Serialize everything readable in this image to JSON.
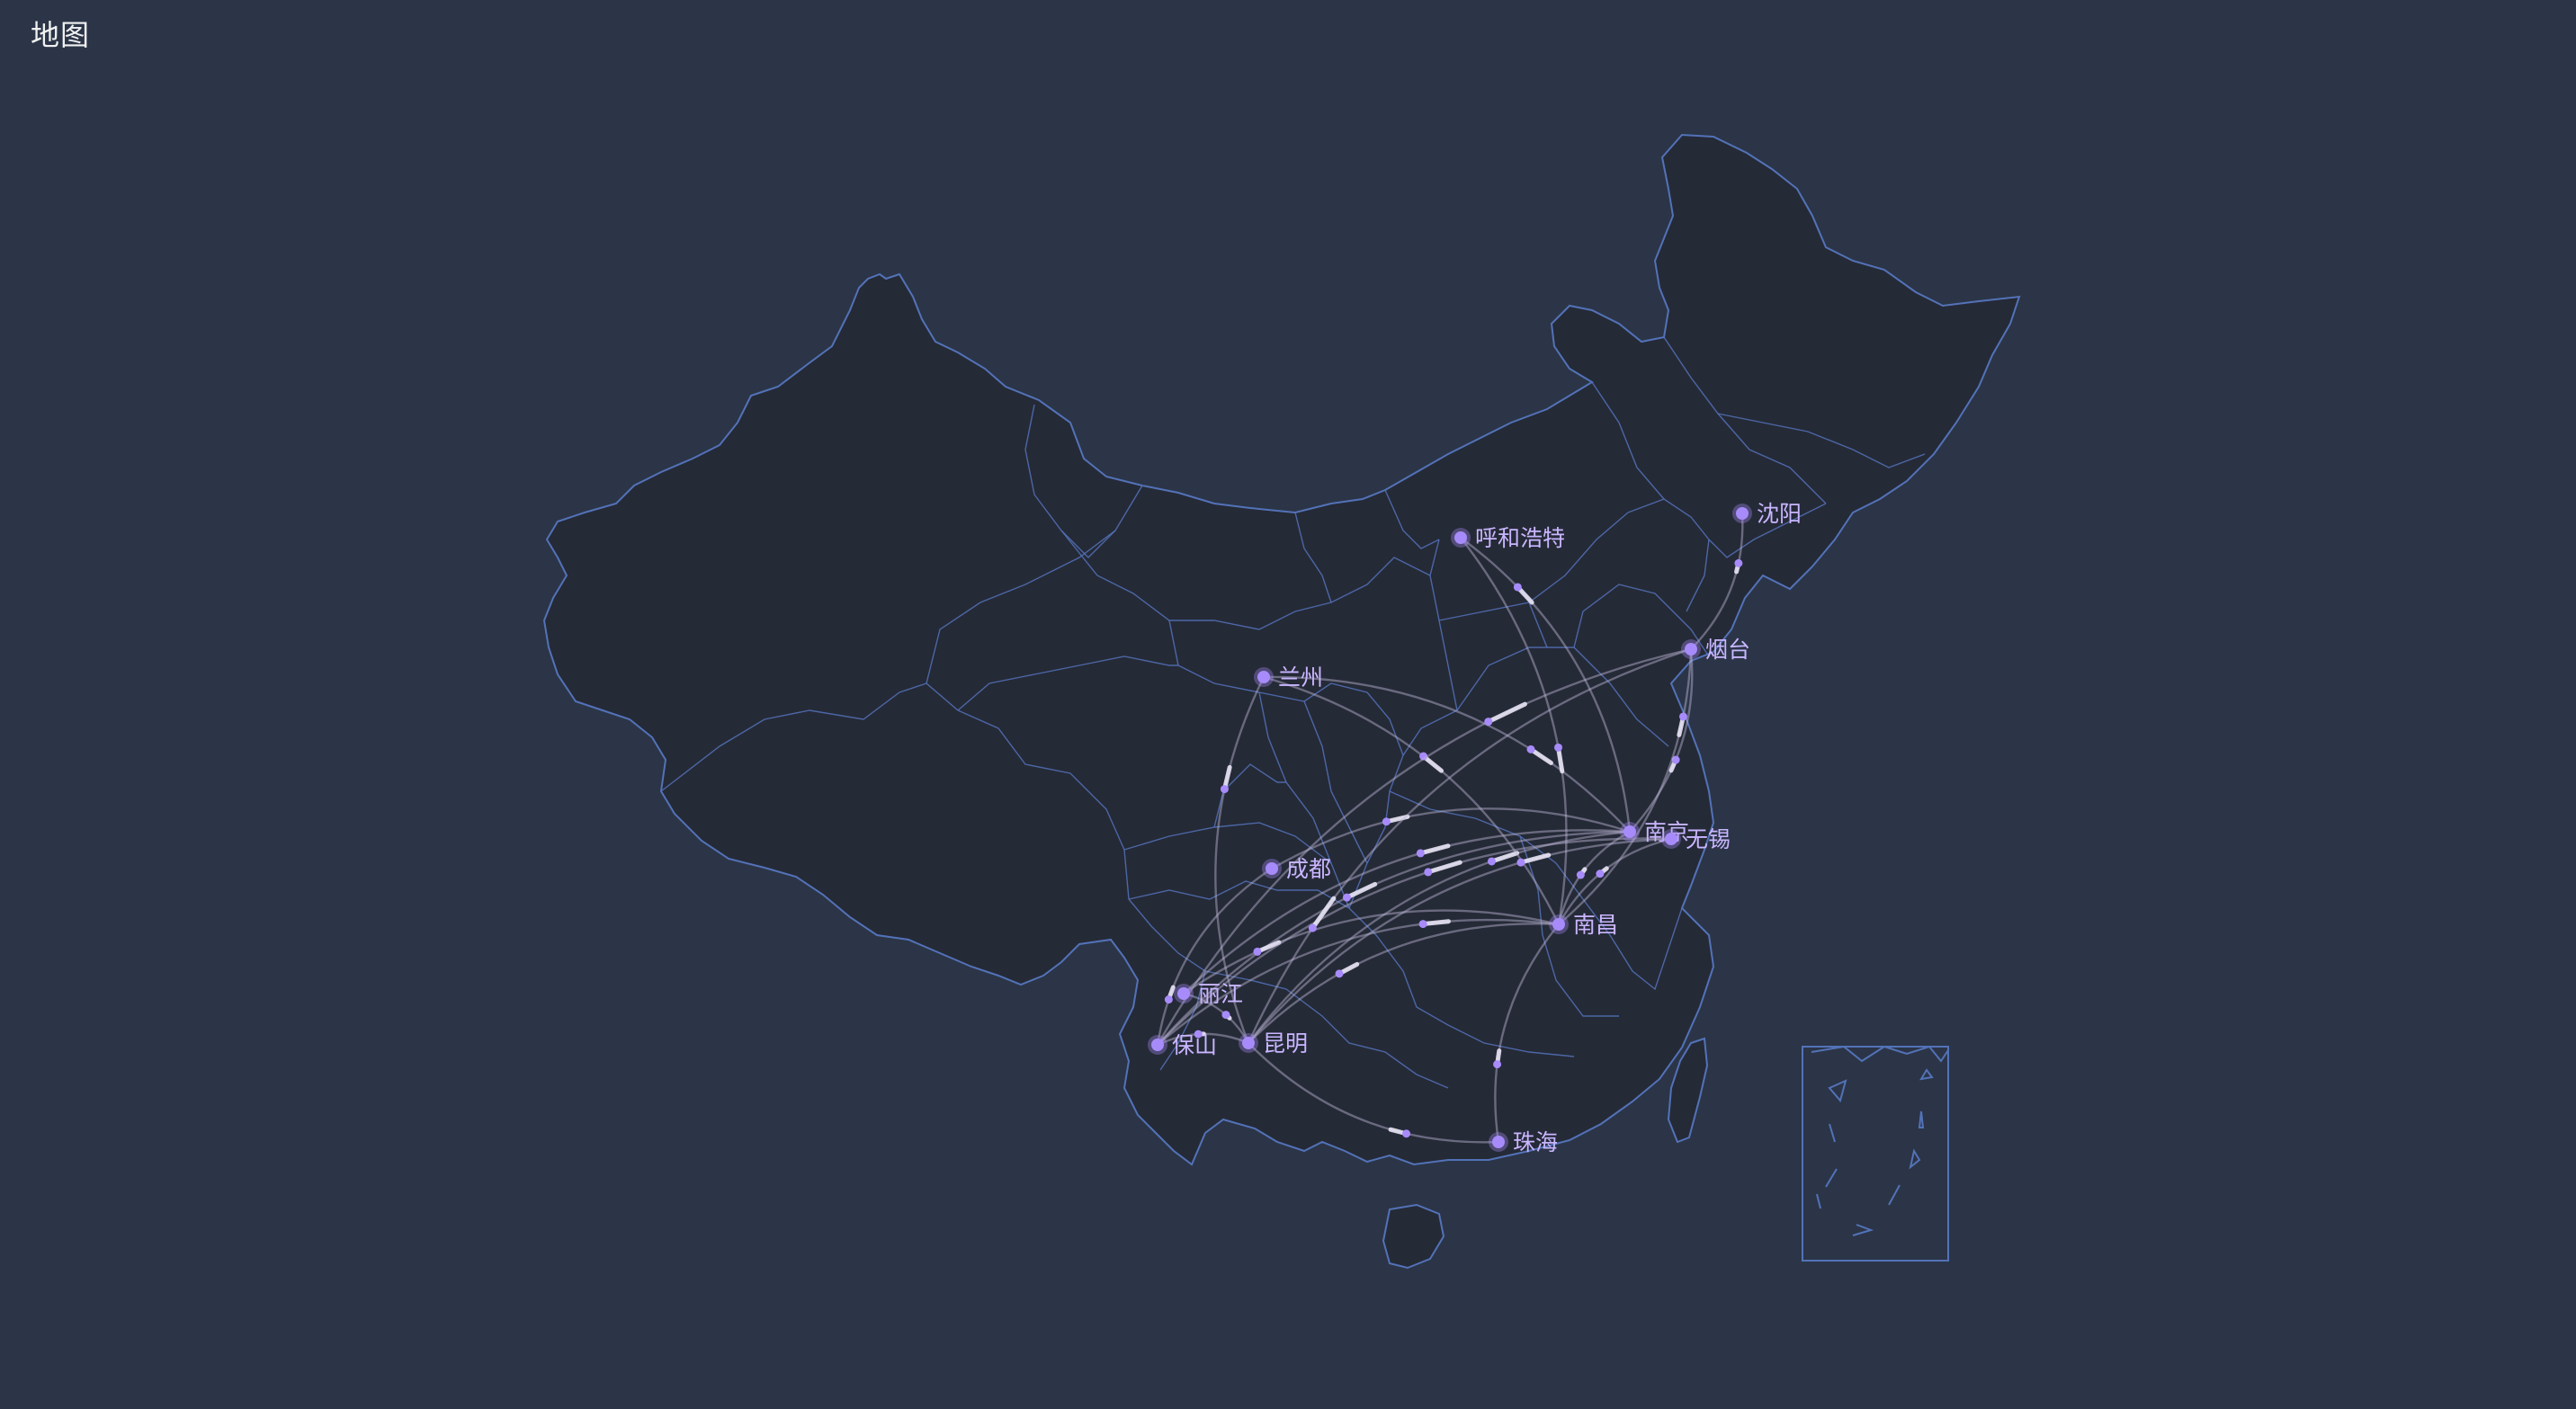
{
  "title": "地图",
  "colors": {
    "background": "#2b3547",
    "region_fill": "#252a37",
    "region_stroke": "#5372b8",
    "route_line": "#bfb8d6",
    "city_point": "#a78bfa",
    "city_label": "#c9b6ff"
  },
  "cities": [
    {
      "id": "shenyang",
      "name": "沈阳"
    },
    {
      "id": "huhehaote",
      "name": "呼和浩特"
    },
    {
      "id": "yantai",
      "name": "烟台"
    },
    {
      "id": "lanzhou",
      "name": "兰州"
    },
    {
      "id": "nanjing",
      "name": "南京"
    },
    {
      "id": "wuxi",
      "name": "无锡"
    },
    {
      "id": "chengdu",
      "name": "成都"
    },
    {
      "id": "nanchang",
      "name": "南昌"
    },
    {
      "id": "lijiang",
      "name": "丽江"
    },
    {
      "id": "baoshan",
      "name": "保山"
    },
    {
      "id": "kunming",
      "name": "昆明"
    },
    {
      "id": "zhuhai",
      "name": "珠海"
    }
  ],
  "routes": [
    [
      "nanjing",
      "kunming"
    ],
    [
      "nanjing",
      "lijiang"
    ],
    [
      "nanjing",
      "baoshan"
    ],
    [
      "nanjing",
      "chengdu"
    ],
    [
      "nanjing",
      "huhehaote"
    ],
    [
      "nanjing",
      "lanzhou"
    ],
    [
      "nanjing",
      "yantai"
    ],
    [
      "nanjing",
      "nanchang"
    ],
    [
      "nanchang",
      "kunming"
    ],
    [
      "nanchang",
      "lijiang"
    ],
    [
      "nanchang",
      "baoshan"
    ],
    [
      "nanchang",
      "huhehaote"
    ],
    [
      "nanchang",
      "lanzhou"
    ],
    [
      "nanchang",
      "zhuhai"
    ],
    [
      "nanchang",
      "yantai"
    ],
    [
      "wuxi",
      "kunming"
    ],
    [
      "wuxi",
      "baoshan"
    ],
    [
      "wuxi",
      "nanchang"
    ],
    [
      "yantai",
      "shenyang"
    ],
    [
      "yantai",
      "kunming"
    ],
    [
      "yantai",
      "baoshan"
    ],
    [
      "kunming",
      "lijiang"
    ],
    [
      "kunming",
      "baoshan"
    ],
    [
      "kunming",
      "zhuhai"
    ],
    [
      "chengdu",
      "baoshan"
    ],
    [
      "lanzhou",
      "kunming"
    ]
  ]
}
